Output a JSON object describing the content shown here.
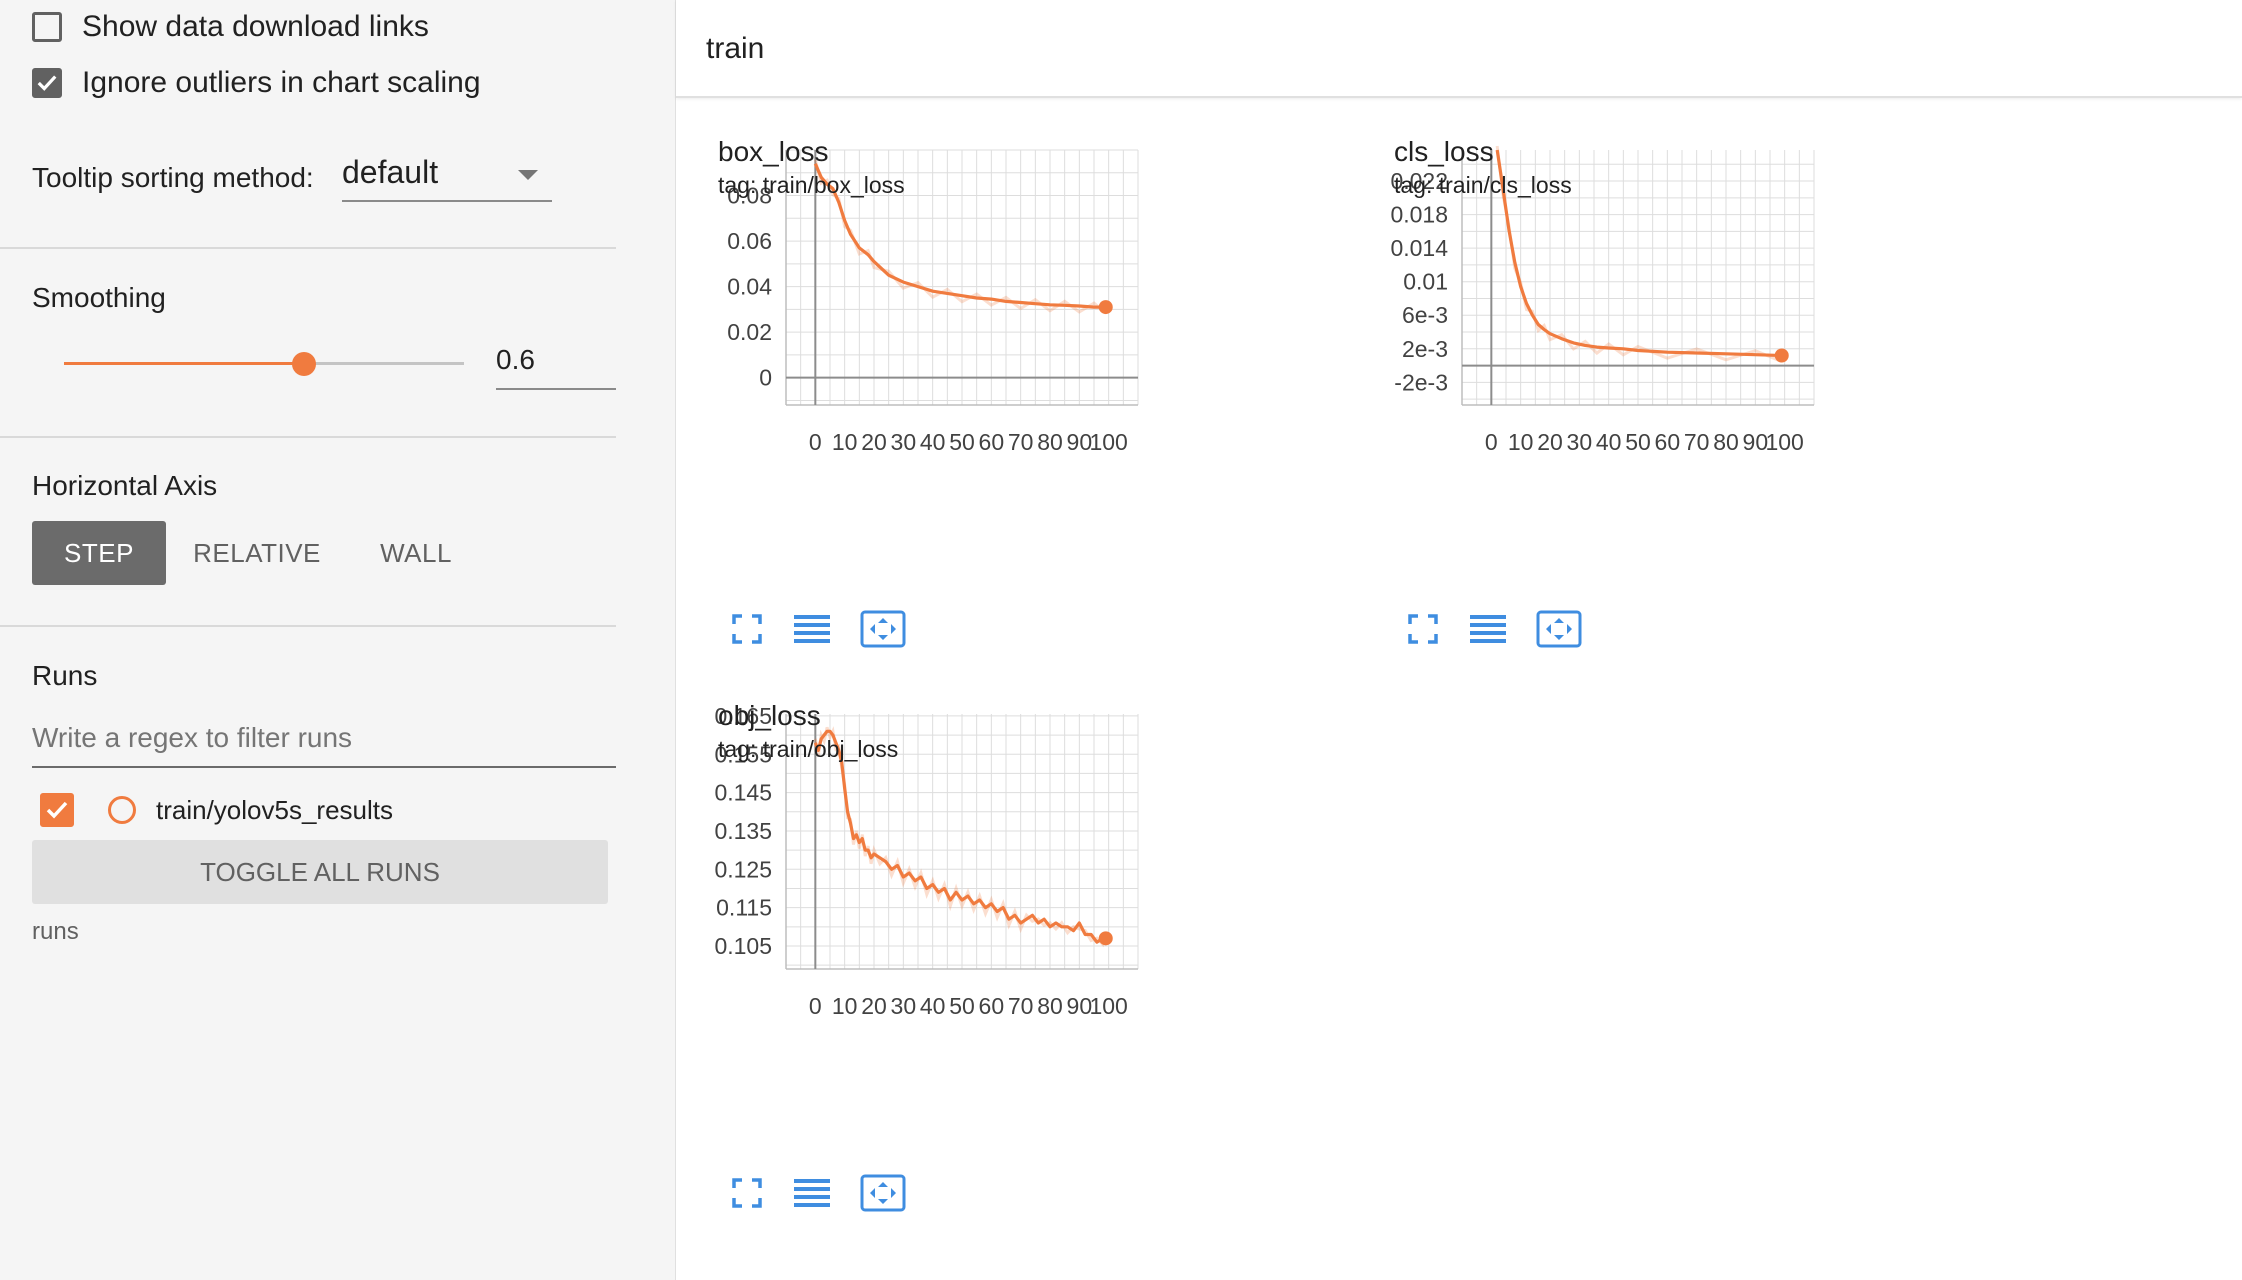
{
  "settings": {
    "show_download_links": "Show data download links",
    "ignore_outliers": "Ignore outliers in chart scaling",
    "tooltip_label": "Tooltip sorting method:",
    "tooltip_value": "default"
  },
  "smoothing": {
    "label": "Smoothing",
    "value": "0.6",
    "level": 0.6
  },
  "horizontal_axis": {
    "label": "Horizontal Axis",
    "options": [
      "STEP",
      "RELATIVE",
      "WALL"
    ],
    "selected": "STEP"
  },
  "runs": {
    "label": "Runs",
    "filter_placeholder": "Write a regex to filter runs",
    "items": [
      {
        "name": "train/yolov5s_results",
        "color": "#f07b3f"
      }
    ],
    "toggle_all": "TOGGLE ALL RUNS",
    "footer": "runs"
  },
  "group": {
    "title": "train"
  },
  "cards": [
    {
      "title": "box_loss",
      "tag": "tag: train/box_loss"
    },
    {
      "title": "cls_loss",
      "tag": "tag: train/cls_loss"
    },
    {
      "title": "obj_loss",
      "tag": "tag: train/obj_loss"
    }
  ],
  "colors": {
    "accent": "#f07b3f",
    "tool_icon": "#3f8de0"
  },
  "icons": [
    "fullscreen-icon",
    "toggle-log-scale-icon",
    "fit-domain-icon"
  ],
  "chart_data": [
    {
      "type": "line",
      "title": "box_loss",
      "x_ticks": [
        0,
        10,
        20,
        30,
        40,
        50,
        60,
        70,
        80,
        90,
        100
      ],
      "y_ticks": [
        0,
        0.02,
        0.04,
        0.06,
        0.08
      ],
      "y_tick_labels": [
        "0",
        "0.02",
        "0.04",
        "0.06",
        "0.08"
      ],
      "xlim": [
        -10,
        110
      ],
      "ylim": [
        -0.012,
        0.1
      ],
      "grid": true,
      "series": [
        {
          "x": [
            0,
            2,
            4,
            6,
            8,
            10,
            12,
            15,
            18,
            20,
            25,
            30,
            35,
            40,
            45,
            50,
            55,
            60,
            65,
            70,
            75,
            80,
            85,
            90,
            95,
            99
          ],
          "y": [
            0.094,
            0.088,
            0.085,
            0.083,
            0.077,
            0.069,
            0.063,
            0.057,
            0.054,
            0.051,
            0.045,
            0.042,
            0.04,
            0.038,
            0.037,
            0.036,
            0.035,
            0.0345,
            0.0335,
            0.033,
            0.0325,
            0.032,
            0.0318,
            0.0315,
            0.031,
            0.031
          ],
          "color": "#f07b3f"
        }
      ]
    },
    {
      "type": "line",
      "title": "cls_loss",
      "x_ticks": [
        0,
        10,
        20,
        30,
        40,
        50,
        60,
        70,
        80,
        90,
        100
      ],
      "y_ticks": [
        -0.002,
        0.002,
        0.006,
        0.01,
        0.014,
        0.018,
        0.022
      ],
      "y_tick_labels": [
        "-2e-3",
        "2e-3",
        "6e-3",
        "0.01",
        "0.014",
        "0.018",
        "0.022"
      ],
      "xlim": [
        -10,
        110
      ],
      "ylim": [
        -0.0047,
        0.0257
      ],
      "grid": true,
      "series": [
        {
          "x": [
            2,
            4,
            6,
            8,
            10,
            12,
            14,
            16,
            18,
            20,
            24,
            28,
            32,
            36,
            40,
            45,
            50,
            60,
            70,
            80,
            90,
            99
          ],
          "y": [
            0.0257,
            0.021,
            0.0162,
            0.0123,
            0.0094,
            0.0074,
            0.006,
            0.0049,
            0.0043,
            0.0038,
            0.0032,
            0.0027,
            0.0024,
            0.0022,
            0.0021,
            0.002,
            0.0018,
            0.0016,
            0.0015,
            0.0014,
            0.0013,
            0.0012
          ],
          "color": "#f07b3f"
        }
      ]
    },
    {
      "type": "line",
      "title": "obj_loss",
      "x_ticks": [
        0,
        10,
        20,
        30,
        40,
        50,
        60,
        70,
        80,
        90,
        100
      ],
      "y_ticks": [
        0.105,
        0.115,
        0.125,
        0.135,
        0.145,
        0.155,
        0.165
      ],
      "y_tick_labels": [
        "0.105",
        "0.115",
        "0.125",
        "0.135",
        "0.145",
        "0.155",
        "0.165"
      ],
      "xlim": [
        -10,
        110
      ],
      "ylim": [
        0.099,
        0.1655
      ],
      "grid": true,
      "series": [
        {
          "x": [
            0,
            1,
            2,
            3,
            4,
            5,
            6,
            7,
            8,
            9,
            10,
            11,
            12,
            13,
            14,
            15,
            16,
            17,
            18,
            19,
            20,
            22,
            24,
            26,
            28,
            30,
            32,
            34,
            36,
            38,
            40,
            42,
            44,
            46,
            48,
            50,
            52,
            54,
            56,
            58,
            60,
            62,
            64,
            66,
            68,
            70,
            72,
            74,
            76,
            78,
            80,
            82,
            84,
            86,
            88,
            90,
            92,
            94,
            96,
            98,
            99
          ],
          "y": [
            0.158,
            0.156,
            0.159,
            0.16,
            0.161,
            0.161,
            0.16,
            0.158,
            0.156,
            0.153,
            0.146,
            0.14,
            0.137,
            0.133,
            0.134,
            0.132,
            0.133,
            0.13,
            0.13,
            0.128,
            0.129,
            0.128,
            0.127,
            0.125,
            0.126,
            0.123,
            0.124,
            0.122,
            0.123,
            0.12,
            0.121,
            0.119,
            0.12,
            0.117,
            0.119,
            0.117,
            0.118,
            0.116,
            0.117,
            0.115,
            0.116,
            0.114,
            0.115,
            0.112,
            0.113,
            0.111,
            0.112,
            0.113,
            0.111,
            0.112,
            0.11,
            0.111,
            0.11,
            0.11,
            0.109,
            0.111,
            0.108,
            0.108,
            0.106,
            0.107,
            0.107
          ],
          "color": "#f07b3f"
        }
      ]
    }
  ]
}
